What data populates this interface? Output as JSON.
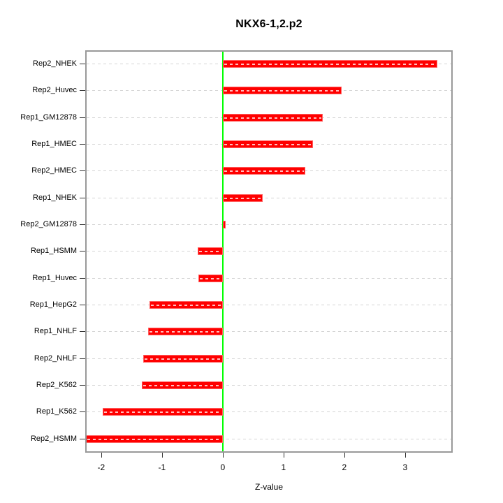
{
  "title": "NKX6-1,2.p2",
  "x_axis": {
    "label": "Z-value"
  },
  "chart_data": {
    "type": "bar",
    "orientation": "horizontal",
    "title": "NKX6-1,2.p2",
    "xlabel": "Z-value",
    "ylabel": "",
    "categories": [
      "Rep2_NHEK",
      "Rep2_Huvec",
      "Rep1_GM12878",
      "Rep1_HMEC",
      "Rep2_HMEC",
      "Rep1_NHEK",
      "Rep2_GM12878",
      "Rep1_HSMM",
      "Rep1_Huvec",
      "Rep1_HepG2",
      "Rep1_NHLF",
      "Rep2_NHLF",
      "Rep2_K562",
      "Rep1_K562",
      "Rep2_HSMM"
    ],
    "values": [
      3.53,
      1.96,
      1.65,
      1.48,
      1.36,
      0.66,
      0.05,
      -0.41,
      -0.4,
      -1.21,
      -1.23,
      -1.31,
      -1.33,
      -1.98,
      -2.25
    ],
    "xticks": [
      -2,
      -1,
      0,
      1,
      2,
      3
    ],
    "xlim": [
      -2.24,
      3.76
    ],
    "grid": "horizontal-dashed-per-row",
    "legend": null,
    "zero_reference_line": 0,
    "colors": {
      "bar": "#ff0000",
      "bar_border": "#ff6060",
      "zero_line": "#00ff00",
      "grid": "#d4d4d4",
      "frame": "#999999",
      "tick": "#333333",
      "text": "#000000",
      "background": "#ffffff"
    }
  }
}
